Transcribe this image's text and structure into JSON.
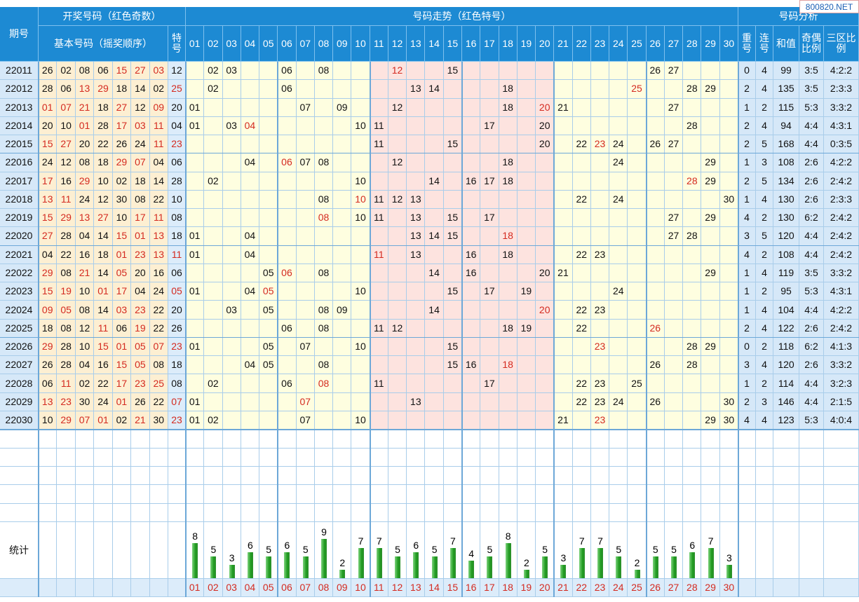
{
  "header": {
    "period": "期号",
    "draw": "开奖号码（红色奇数）",
    "basic": "基本号码（摇奖顺序）",
    "special": "特号",
    "trend": "号码走势（红色特号）",
    "analysis": "号码分析",
    "repeat": "重号",
    "consecutive": "连号",
    "sum": "和值",
    "odd_even": "奇偶比例",
    "zones": "三区比例",
    "numbers": [
      "01",
      "02",
      "03",
      "04",
      "05",
      "06",
      "07",
      "08",
      "09",
      "10",
      "11",
      "12",
      "13",
      "14",
      "15",
      "16",
      "17",
      "18",
      "19",
      "20",
      "21",
      "22",
      "23",
      "24",
      "25",
      "26",
      "27",
      "28",
      "29",
      "30"
    ]
  },
  "rows": [
    {
      "period": "22011",
      "basic": [
        "26",
        "02",
        "08",
        "06",
        "15",
        "27",
        "03"
      ],
      "special": "12",
      "repeat": 0,
      "consecutive": 4,
      "sum": 99,
      "odd_even": "3:5",
      "zones": "4:2:2"
    },
    {
      "period": "22012",
      "basic": [
        "28",
        "06",
        "13",
        "29",
        "18",
        "14",
        "02"
      ],
      "special": "25",
      "repeat": 2,
      "consecutive": 4,
      "sum": 135,
      "odd_even": "3:5",
      "zones": "2:3:3"
    },
    {
      "period": "22013",
      "basic": [
        "01",
        "07",
        "21",
        "18",
        "27",
        "12",
        "09"
      ],
      "special": "20",
      "repeat": 1,
      "consecutive": 2,
      "sum": 115,
      "odd_even": "5:3",
      "zones": "3:3:2"
    },
    {
      "period": "22014",
      "basic": [
        "20",
        "10",
        "01",
        "28",
        "17",
        "03",
        "11"
      ],
      "special": "04",
      "repeat": 2,
      "consecutive": 4,
      "sum": 94,
      "odd_even": "4:4",
      "zones": "4:3:1"
    },
    {
      "period": "22015",
      "basic": [
        "15",
        "27",
        "20",
        "22",
        "26",
        "24",
        "11"
      ],
      "special": "23",
      "repeat": 2,
      "consecutive": 5,
      "sum": 168,
      "odd_even": "4:4",
      "zones": "0:3:5"
    },
    {
      "period": "22016",
      "basic": [
        "24",
        "12",
        "08",
        "18",
        "29",
        "07",
        "04"
      ],
      "special": "06",
      "repeat": 1,
      "consecutive": 3,
      "sum": 108,
      "odd_even": "2:6",
      "zones": "4:2:2"
    },
    {
      "period": "22017",
      "basic": [
        "17",
        "16",
        "29",
        "10",
        "02",
        "18",
        "14"
      ],
      "special": "28",
      "repeat": 2,
      "consecutive": 5,
      "sum": 134,
      "odd_even": "2:6",
      "zones": "2:4:2"
    },
    {
      "period": "22018",
      "basic": [
        "13",
        "11",
        "24",
        "12",
        "30",
        "08",
        "22"
      ],
      "special": "10",
      "repeat": 1,
      "consecutive": 4,
      "sum": 130,
      "odd_even": "2:6",
      "zones": "2:3:3"
    },
    {
      "period": "22019",
      "basic": [
        "15",
        "29",
        "13",
        "27",
        "10",
        "17",
        "11"
      ],
      "special": "08",
      "repeat": 4,
      "consecutive": 2,
      "sum": 130,
      "odd_even": "6:2",
      "zones": "2:4:2"
    },
    {
      "period": "22020",
      "basic": [
        "27",
        "28",
        "04",
        "14",
        "15",
        "01",
        "13"
      ],
      "special": "18",
      "repeat": 3,
      "consecutive": 5,
      "sum": 120,
      "odd_even": "4:4",
      "zones": "2:4:2"
    },
    {
      "period": "22021",
      "basic": [
        "04",
        "22",
        "16",
        "18",
        "01",
        "23",
        "13"
      ],
      "special": "11",
      "repeat": 4,
      "consecutive": 2,
      "sum": 108,
      "odd_even": "4:4",
      "zones": "2:4:2"
    },
    {
      "period": "22022",
      "basic": [
        "29",
        "08",
        "21",
        "14",
        "05",
        "20",
        "16"
      ],
      "special": "06",
      "repeat": 1,
      "consecutive": 4,
      "sum": 119,
      "odd_even": "3:5",
      "zones": "3:3:2"
    },
    {
      "period": "22023",
      "basic": [
        "15",
        "19",
        "10",
        "01",
        "17",
        "04",
        "24"
      ],
      "special": "05",
      "repeat": 1,
      "consecutive": 2,
      "sum": 95,
      "odd_even": "5:3",
      "zones": "4:3:1"
    },
    {
      "period": "22024",
      "basic": [
        "09",
        "05",
        "08",
        "14",
        "03",
        "23",
        "22"
      ],
      "special": "20",
      "repeat": 1,
      "consecutive": 4,
      "sum": 104,
      "odd_even": "4:4",
      "zones": "4:2:2"
    },
    {
      "period": "22025",
      "basic": [
        "18",
        "08",
        "12",
        "11",
        "06",
        "19",
        "22"
      ],
      "special": "26",
      "repeat": 2,
      "consecutive": 4,
      "sum": 122,
      "odd_even": "2:6",
      "zones": "2:4:2"
    },
    {
      "period": "22026",
      "basic": [
        "29",
        "28",
        "10",
        "15",
        "01",
        "05",
        "07"
      ],
      "special": "23",
      "repeat": 0,
      "consecutive": 2,
      "sum": 118,
      "odd_even": "6:2",
      "zones": "4:1:3"
    },
    {
      "period": "22027",
      "basic": [
        "26",
        "28",
        "04",
        "16",
        "15",
        "05",
        "08"
      ],
      "special": "18",
      "repeat": 3,
      "consecutive": 4,
      "sum": 120,
      "odd_even": "2:6",
      "zones": "3:3:2"
    },
    {
      "period": "22028",
      "basic": [
        "06",
        "11",
        "02",
        "22",
        "17",
        "23",
        "25"
      ],
      "special": "08",
      "repeat": 1,
      "consecutive": 2,
      "sum": 114,
      "odd_even": "4:4",
      "zones": "3:2:3"
    },
    {
      "period": "22029",
      "basic": [
        "13",
        "23",
        "30",
        "24",
        "01",
        "26",
        "22"
      ],
      "special": "07",
      "repeat": 2,
      "consecutive": 3,
      "sum": 146,
      "odd_even": "4:4",
      "zones": "2:1:5"
    },
    {
      "period": "22030",
      "basic": [
        "10",
        "29",
        "07",
        "01",
        "02",
        "21",
        "30"
      ],
      "special": "23",
      "repeat": 4,
      "consecutive": 4,
      "sum": 123,
      "odd_even": "5:3",
      "zones": "4:0:4"
    }
  ],
  "stats": {
    "label": "统计",
    "counts": [
      8,
      5,
      3,
      6,
      5,
      6,
      5,
      9,
      2,
      7,
      7,
      5,
      6,
      5,
      7,
      4,
      5,
      8,
      2,
      5,
      3,
      7,
      7,
      5,
      2,
      5,
      5,
      6,
      7,
      3
    ],
    "numbers": [
      "01",
      "02",
      "03",
      "04",
      "05",
      "06",
      "07",
      "08",
      "09",
      "10",
      "11",
      "12",
      "13",
      "14",
      "15",
      "16",
      "17",
      "18",
      "19",
      "20",
      "21",
      "22",
      "23",
      "24",
      "25",
      "26",
      "27",
      "28",
      "29",
      "30"
    ]
  },
  "watermark": "800820.NET"
}
